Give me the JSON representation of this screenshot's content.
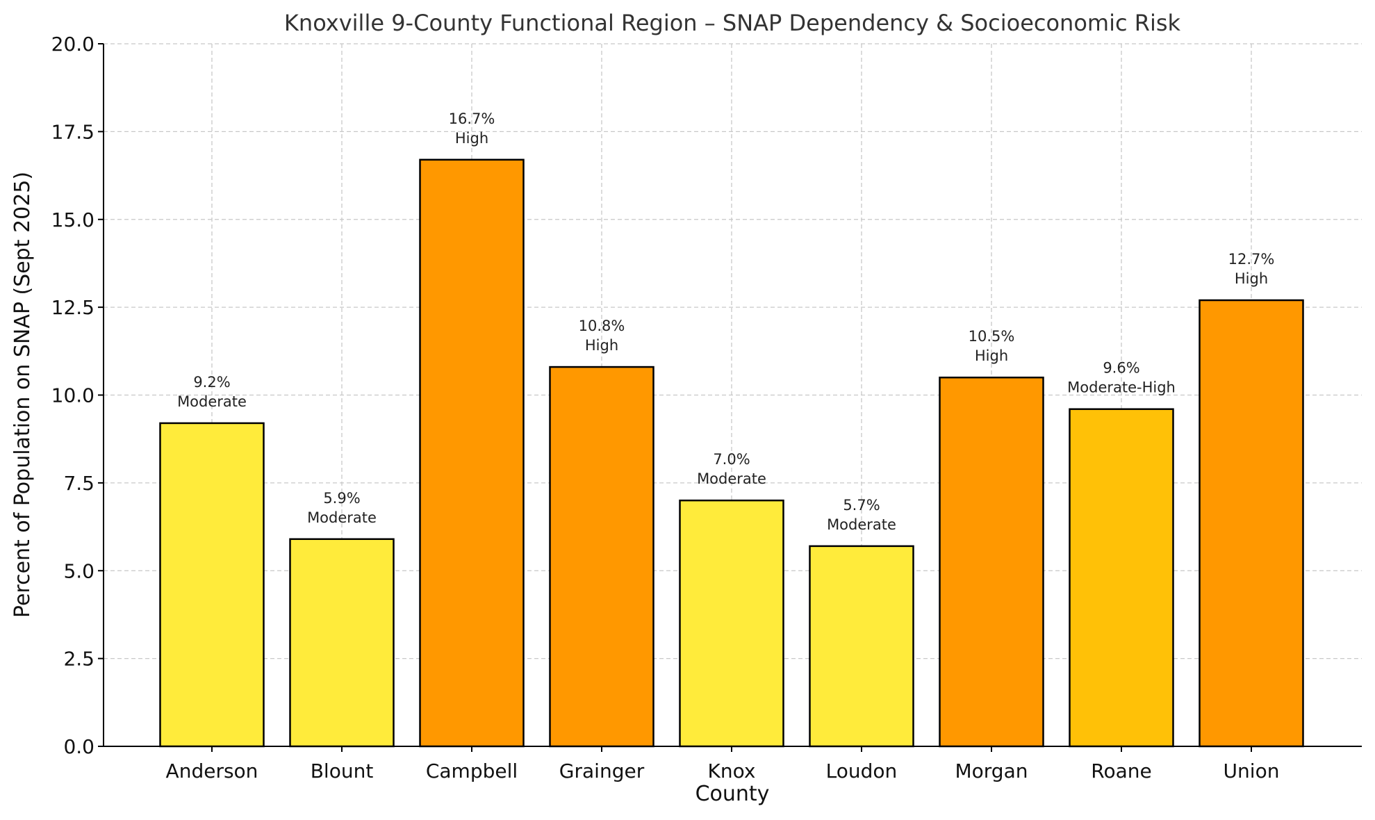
{
  "chart_data": {
    "type": "bar",
    "title": "Knoxville 9-County Functional Region – SNAP Dependency & Socioeconomic Risk",
    "xlabel": "County",
    "ylabel": "Percent of Population on SNAP (Sept 2025)",
    "ylim": [
      0,
      20
    ],
    "yticks": [
      "0.0",
      "2.5",
      "5.0",
      "7.5",
      "10.0",
      "12.5",
      "15.0",
      "17.5",
      "20.0"
    ],
    "grid": true,
    "categories": [
      "Anderson",
      "Blount",
      "Campbell",
      "Grainger",
      "Knox",
      "Loudon",
      "Morgan",
      "Roane",
      "Union"
    ],
    "values": [
      9.2,
      5.9,
      16.7,
      10.8,
      7.0,
      5.7,
      10.5,
      9.6,
      12.7
    ],
    "value_labels": [
      "9.2%",
      "5.9%",
      "16.7%",
      "10.8%",
      "7.0%",
      "5.7%",
      "10.5%",
      "9.6%",
      "12.7%"
    ],
    "risk": [
      "Moderate",
      "Moderate",
      "High",
      "High",
      "Moderate",
      "Moderate",
      "High",
      "Moderate-High",
      "High"
    ],
    "risk_colors": {
      "Moderate": "#FFEB3B",
      "Moderate-High": "#FFC107",
      "High": "#FF9800"
    }
  }
}
